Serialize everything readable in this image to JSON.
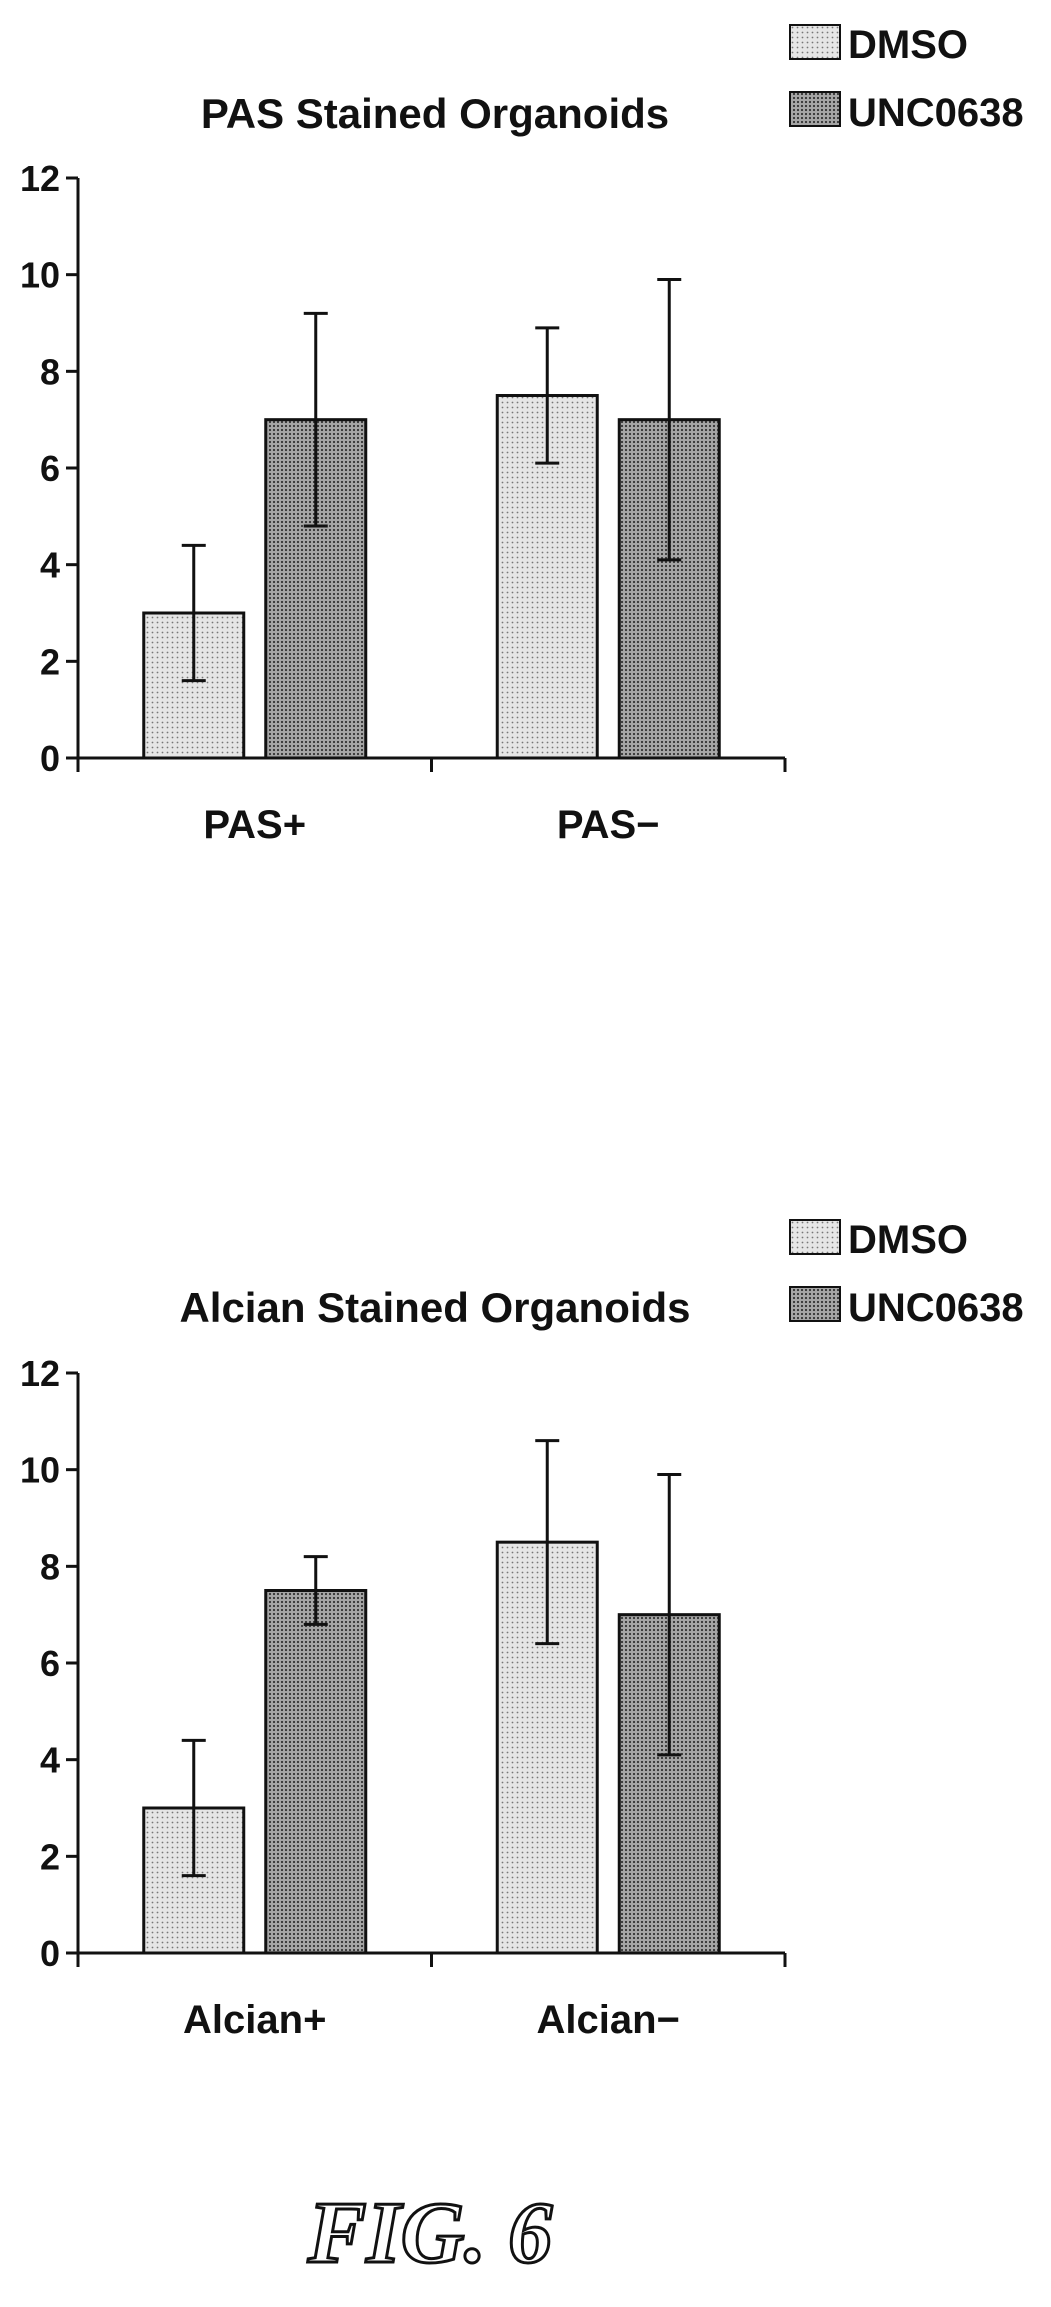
{
  "figure_label": "FIG. 6",
  "legend": {
    "items": [
      "DMSO",
      "UNC0638"
    ]
  },
  "colors": {
    "dmso": "#d9d9d9",
    "unc": "#8f8f8f",
    "stroke": "#111111"
  },
  "chart_data": [
    {
      "type": "bar",
      "title": "PAS Stained Organoids",
      "categories": [
        "PAS+",
        "PAS−"
      ],
      "series": [
        {
          "name": "DMSO",
          "values": [
            3.0,
            7.5
          ],
          "errors": [
            1.4,
            1.4
          ]
        },
        {
          "name": "UNC0638",
          "values": [
            7.0,
            7.0
          ],
          "errors": [
            2.2,
            2.9
          ]
        }
      ],
      "ylim": [
        0,
        12
      ],
      "yticks": [
        "0",
        "2",
        "4",
        "6",
        "8",
        "10",
        "12"
      ],
      "xlabel": "",
      "ylabel": "",
      "legend_position": "top-right"
    },
    {
      "type": "bar",
      "title": "Alcian Stained Organoids",
      "categories": [
        "Alcian+",
        "Alcian−"
      ],
      "series": [
        {
          "name": "DMSO",
          "values": [
            3.0,
            8.5
          ],
          "errors": [
            1.4,
            2.1
          ]
        },
        {
          "name": "UNC0638",
          "values": [
            7.5,
            7.0
          ],
          "errors": [
            0.7,
            2.9
          ]
        }
      ],
      "ylim": [
        0,
        12
      ],
      "yticks": [
        "0",
        "2",
        "4",
        "6",
        "8",
        "10",
        "12"
      ],
      "xlabel": "",
      "ylabel": "",
      "legend_position": "top-right"
    }
  ]
}
